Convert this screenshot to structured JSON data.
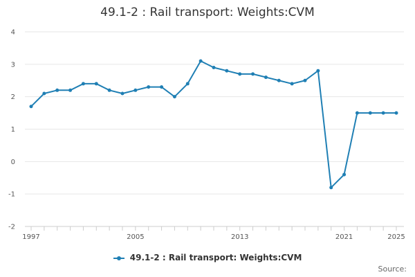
{
  "chart_data": {
    "type": "line",
    "title": "49.1-2 : Rail transport: Weights:CVM",
    "xlabel": "",
    "ylabel": "",
    "x": [
      1997,
      1998,
      1999,
      2000,
      2001,
      2002,
      2003,
      2004,
      2005,
      2006,
      2007,
      2008,
      2009,
      2010,
      2011,
      2012,
      2013,
      2014,
      2015,
      2016,
      2017,
      2018,
      2019,
      2020,
      2021,
      2022,
      2023,
      2024,
      2025
    ],
    "series": [
      {
        "name": "49.1-2 : Rail transport: Weights:CVM",
        "values": [
          1.7,
          2.1,
          2.2,
          2.2,
          2.4,
          2.4,
          2.2,
          2.1,
          2.2,
          2.3,
          2.3,
          2.0,
          2.4,
          3.1,
          2.9,
          2.8,
          2.7,
          2.7,
          2.6,
          2.5,
          2.4,
          2.5,
          2.8,
          -0.8,
          -0.4,
          1.5,
          1.5,
          1.5,
          1.5
        ]
      }
    ],
    "ylim": [
      -2,
      4
    ],
    "yticks": [
      -2,
      -1,
      0,
      1,
      2,
      3,
      4
    ],
    "xticks": [
      1997,
      2005,
      2013,
      2021,
      2025
    ],
    "grid": true,
    "legend": "bottom-center",
    "color": "#1f7fb4"
  },
  "credits": "Source:"
}
